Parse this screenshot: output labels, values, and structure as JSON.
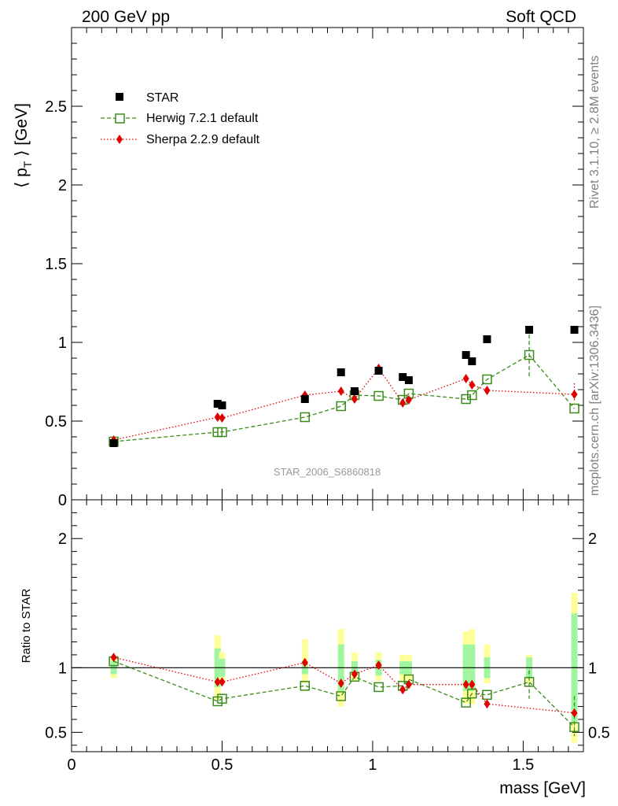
{
  "header": {
    "left": "200 GeV pp",
    "right": "Soft QCD"
  },
  "side_labels": {
    "rivet": "Rivet 3.1.10, ≥ 2.8M events",
    "mcplots": "mcplots.cern.ch [arXiv:1306.3436]"
  },
  "watermark": "STAR_2006_S6860818",
  "colors": {
    "star": "#000000",
    "herwig": "#3a8c1a",
    "sherpa": "#e00000",
    "band_inner": "#a0f5a0",
    "band_outer": "#ffff99"
  },
  "chart_data": [
    {
      "type": "scatter",
      "xlabel": "mass [GeV]",
      "ylabel": "⟨ p_T ⟩ [GeV]",
      "xlim": [
        0,
        1.7
      ],
      "ylim": [
        0,
        3.0
      ],
      "yticks": [
        "0",
        "0.5",
        "1",
        "1.5",
        "2",
        "2.5"
      ],
      "xticks": [
        "0",
        "0.5",
        "1",
        "1.5"
      ],
      "grid": false,
      "legend": "top-left",
      "series": [
        {
          "name": "STAR",
          "marker": "square",
          "color": "#000000",
          "x": [
            0.14,
            0.485,
            0.5,
            0.775,
            0.895,
            0.94,
            1.02,
            1.1,
            1.12,
            1.31,
            1.33,
            1.38,
            1.52,
            1.67
          ],
          "y": [
            0.36,
            0.61,
            0.6,
            0.64,
            0.81,
            0.69,
            0.82,
            0.78,
            0.76,
            0.92,
            0.88,
            1.02,
            1.08,
            1.08
          ]
        },
        {
          "name": "Herwig 7.2.1 default",
          "marker": "open-square",
          "line": "dashed",
          "color": "#3a8c1a",
          "x": [
            0.14,
            0.485,
            0.5,
            0.775,
            0.895,
            0.94,
            1.02,
            1.1,
            1.12,
            1.31,
            1.33,
            1.38,
            1.52,
            1.67
          ],
          "y": [
            0.37,
            0.43,
            0.43,
            0.525,
            0.595,
            0.665,
            0.66,
            0.635,
            0.675,
            0.64,
            0.665,
            0.765,
            0.92,
            0.58
          ]
        },
        {
          "name": "Sherpa 2.2.9 default",
          "marker": "diamond",
          "line": "dotted",
          "color": "#e00000",
          "x": [
            0.14,
            0.485,
            0.5,
            0.775,
            0.895,
            0.94,
            1.02,
            1.1,
            1.12,
            1.31,
            1.33,
            1.38,
            1.67
          ],
          "y": [
            0.38,
            0.525,
            0.52,
            0.665,
            0.69,
            0.64,
            0.835,
            0.615,
            0.635,
            0.77,
            0.73,
            0.695,
            0.67
          ]
        }
      ]
    },
    {
      "type": "scatter",
      "xlabel": "mass [GeV]",
      "ylabel": "Ratio to STAR",
      "xlim": [
        0,
        1.7
      ],
      "ylim": [
        0.35,
        2.3
      ],
      "yticks": [
        "0.5",
        "1",
        "2"
      ],
      "xticks": [
        "0",
        "0.5",
        "1",
        "1.5"
      ],
      "reference_line": 1,
      "bands": [
        {
          "x": 0.14,
          "inner": [
            0.95,
            1.05
          ],
          "outer": [
            0.92,
            1.08
          ]
        },
        {
          "x": 0.485,
          "inner": [
            0.85,
            1.15
          ],
          "outer": [
            0.75,
            1.25
          ]
        },
        {
          "x": 0.5,
          "inner": [
            0.93,
            1.07
          ],
          "outer": [
            0.88,
            1.12
          ]
        },
        {
          "x": 0.775,
          "inner": [
            0.95,
            1.05
          ],
          "outer": [
            0.88,
            1.22
          ]
        },
        {
          "x": 0.895,
          "inner": [
            0.82,
            1.18
          ],
          "outer": [
            0.7,
            1.3
          ]
        },
        {
          "x": 0.94,
          "inner": [
            0.95,
            1.05
          ],
          "outer": [
            0.9,
            1.12
          ]
        },
        {
          "x": 1.02,
          "inner": [
            0.94,
            1.06
          ],
          "outer": [
            0.9,
            1.12
          ]
        },
        {
          "x": 1.1,
          "inner": [
            0.95,
            1.05
          ],
          "outer": [
            0.9,
            1.1
          ]
        },
        {
          "x": 1.12,
          "inner": [
            0.95,
            1.05
          ],
          "outer": [
            0.9,
            1.1
          ]
        },
        {
          "x": 1.31,
          "inner": [
            0.82,
            1.18
          ],
          "outer": [
            0.72,
            1.28
          ]
        },
        {
          "x": 1.33,
          "inner": [
            0.82,
            1.18
          ],
          "outer": [
            0.72,
            1.3
          ]
        },
        {
          "x": 1.38,
          "inner": [
            0.92,
            1.08
          ],
          "outer": [
            0.88,
            1.18
          ]
        },
        {
          "x": 1.52,
          "inner": [
            0.92,
            1.08
          ],
          "outer": [
            0.88,
            1.1
          ]
        },
        {
          "x": 1.67,
          "inner": [
            0.58,
            1.42
          ],
          "outer": [
            0.42,
            1.58
          ]
        }
      ],
      "series": [
        {
          "name": "Herwig 7.2.1 default",
          "marker": "open-square",
          "line": "dashed",
          "color": "#3a8c1a",
          "x": [
            0.14,
            0.485,
            0.5,
            0.775,
            0.895,
            0.94,
            1.02,
            1.1,
            1.12,
            1.31,
            1.33,
            1.38,
            1.52,
            1.67
          ],
          "y": [
            1.05,
            0.74,
            0.76,
            0.86,
            0.78,
            0.93,
            0.85,
            0.86,
            0.91,
            0.73,
            0.8,
            0.79,
            0.89,
            0.54
          ]
        },
        {
          "name": "Sherpa 2.2.9 default",
          "marker": "diamond",
          "line": "dotted",
          "color": "#e00000",
          "x": [
            0.14,
            0.485,
            0.5,
            0.775,
            0.895,
            0.94,
            1.02,
            1.1,
            1.12,
            1.31,
            1.33,
            1.38,
            1.67
          ],
          "y": [
            1.08,
            0.89,
            0.89,
            1.04,
            0.88,
            0.95,
            1.02,
            0.83,
            0.87,
            0.87,
            0.87,
            0.72,
            0.65
          ]
        }
      ]
    }
  ]
}
